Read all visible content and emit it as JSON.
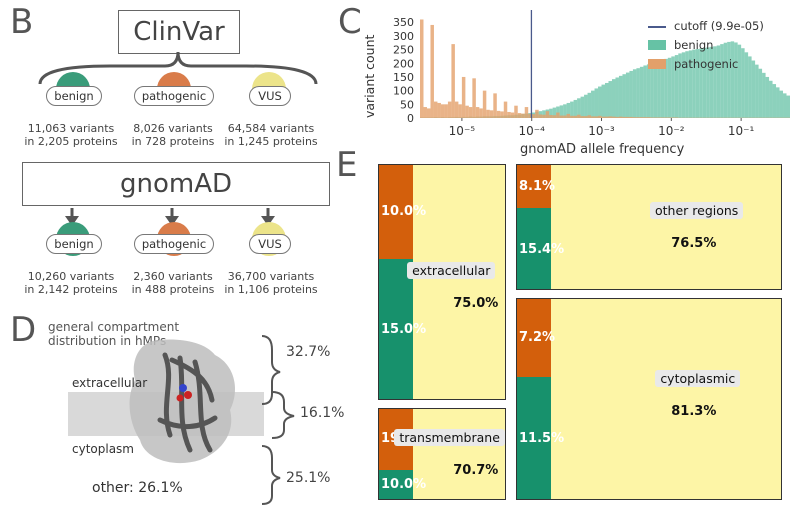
{
  "panels": {
    "B": "B",
    "C": "C",
    "D": "D",
    "E": "E"
  },
  "panel_b": {
    "source1": "ClinVar",
    "source2": "gnomAD",
    "row1": [
      {
        "label": "benign",
        "color": "#3a9c7a",
        "line1": "11,063 variants",
        "line2": "in 2,205 proteins"
      },
      {
        "label": "pathogenic",
        "color": "#d97c4a",
        "line1": "8,026 variants",
        "line2": "in 728 proteins"
      },
      {
        "label": "VUS",
        "color": "#ece48a",
        "line1": "64,584 variants",
        "line2": "in 1,245 proteins"
      }
    ],
    "row2": [
      {
        "label": "benign",
        "color": "#3a9c7a",
        "line1": "10,260 variants",
        "line2": "in 2,142 proteins"
      },
      {
        "label": "pathogenic",
        "color": "#d97c4a",
        "line1": "2,360 variants",
        "line2": "in 488 proteins"
      },
      {
        "label": "VUS",
        "color": "#ece48a",
        "line1": "36,700 variants",
        "line2": "in 1,106 proteins"
      }
    ]
  },
  "chart_data": {
    "type": "bar",
    "title": "",
    "xlabel": "gnomAD allele frequency",
    "ylabel": "variant count",
    "xscale": "log",
    "xlim_exp": [
      -5.6,
      -0.3
    ],
    "ylim": [
      0,
      380
    ],
    "yticks": [
      0,
      50,
      100,
      150,
      200,
      250,
      300,
      350
    ],
    "xtick_labels": [
      "10⁻⁵",
      "10⁻⁴",
      "10⁻³",
      "10⁻²",
      "10⁻¹"
    ],
    "xtick_exps": [
      -5,
      -4,
      -3,
      -2,
      -1
    ],
    "cutoff_label": "cutoff (9.9e-05)",
    "cutoff_exp": -4.004,
    "legend_position": "top-right",
    "colors": {
      "benign": "#66c2a5",
      "pathogenic": "#e3a06a",
      "cutoff": "#4a5a8c"
    },
    "series": [
      {
        "name": "benign",
        "bin_start_exp": -5.6,
        "bin_width": 0.05,
        "values": [
          2,
          2,
          2,
          2,
          3,
          2,
          3,
          2,
          3,
          3,
          4,
          3,
          4,
          4,
          5,
          4,
          5,
          5,
          6,
          6,
          6,
          7,
          7,
          8,
          9,
          10,
          10,
          12,
          13,
          15,
          16,
          18,
          20,
          23,
          25,
          28,
          31,
          34,
          38,
          42,
          46,
          50,
          55,
          60,
          66,
          72,
          78,
          85,
          92,
          100,
          108,
          115,
          122,
          128,
          135,
          142,
          148,
          154,
          160,
          166,
          172,
          178,
          182,
          187,
          192,
          196,
          200,
          204,
          208,
          212,
          216,
          220,
          225,
          230,
          236,
          240,
          244,
          247,
          250,
          252,
          254,
          256,
          258,
          260,
          262,
          265,
          270,
          275,
          278,
          280,
          276,
          268,
          255,
          240,
          225,
          210,
          195,
          180,
          165,
          150,
          136,
          124,
          112,
          100,
          90,
          82,
          74,
          67,
          60,
          55,
          50,
          46,
          42,
          39,
          36,
          34,
          32,
          31,
          30,
          29,
          28,
          27,
          26,
          26,
          25,
          25,
          24,
          24,
          23,
          23,
          22,
          22,
          22
        ]
      },
      {
        "name": "pathogenic",
        "bin_start_exp": -5.6,
        "bin_width": 0.05,
        "values": [
          360,
          40,
          35,
          340,
          60,
          55,
          50,
          50,
          60,
          270,
          60,
          50,
          150,
          45,
          40,
          145,
          40,
          35,
          100,
          30,
          28,
          90,
          26,
          24,
          60,
          22,
          20,
          45,
          18,
          16,
          40,
          15,
          14,
          30,
          13,
          12,
          25,
          11,
          10,
          20,
          9,
          9,
          15,
          8,
          8,
          12,
          7,
          7,
          10,
          6,
          6,
          8,
          5,
          5,
          6,
          5,
          4,
          5,
          4,
          4,
          4,
          3,
          3,
          3,
          3,
          3,
          2,
          2,
          2,
          2,
          2,
          2,
          2,
          2,
          1,
          1,
          1,
          1,
          1,
          1,
          1,
          1,
          1,
          1,
          1,
          1,
          1,
          1,
          1,
          1,
          1,
          1,
          1,
          1,
          1,
          1,
          1,
          1,
          1,
          1,
          1,
          1,
          1,
          1,
          1,
          1,
          1,
          1,
          1,
          1,
          1,
          1,
          1,
          1,
          1,
          1,
          1,
          1,
          1,
          1,
          1,
          1,
          1,
          1,
          1,
          1,
          1,
          1,
          1,
          1,
          1,
          1,
          1
        ]
      }
    ],
    "panel_e": [
      {
        "name": "extracellular",
        "pathogenic_pct": 10.0,
        "benign_pct": 15.0,
        "vus_pct": 75.0,
        "pathogenic_label": "10.0%",
        "benign_label": "15.0%",
        "vus_label": "75.0%"
      },
      {
        "name": "other regions",
        "pathogenic_pct": 8.1,
        "benign_pct": 15.4,
        "vus_pct": 76.5,
        "pathogenic_label": "8.1%",
        "benign_label": "15.4%",
        "vus_label": "76.5%"
      },
      {
        "name": "transmembrane",
        "pathogenic_pct": 19.3,
        "benign_pct": 10.0,
        "vus_pct": 70.7,
        "pathogenic_label": "19.3%",
        "benign_label": "10.0%",
        "vus_label": "70.7%"
      },
      {
        "name": "cytoplasmic",
        "pathogenic_pct": 7.2,
        "benign_pct": 11.5,
        "vus_pct": 81.3,
        "pathogenic_label": "7.2%",
        "benign_label": "11.5%",
        "vus_label": "81.3%"
      }
    ]
  },
  "panel_d": {
    "caption_line1": "general compartment",
    "caption_line2": "distribution in hMPs",
    "label_extracellular": "extracellular",
    "label_cytoplasm": "cytoplasm",
    "label_other": "other: 26.1%",
    "pct_top": "32.7%",
    "pct_mid": "16.1%",
    "pct_bottom": "25.1%"
  },
  "e_colors": {
    "pathogenic": "#d35f0c",
    "benign": "#17916c",
    "vus": "#fdf5a6"
  }
}
